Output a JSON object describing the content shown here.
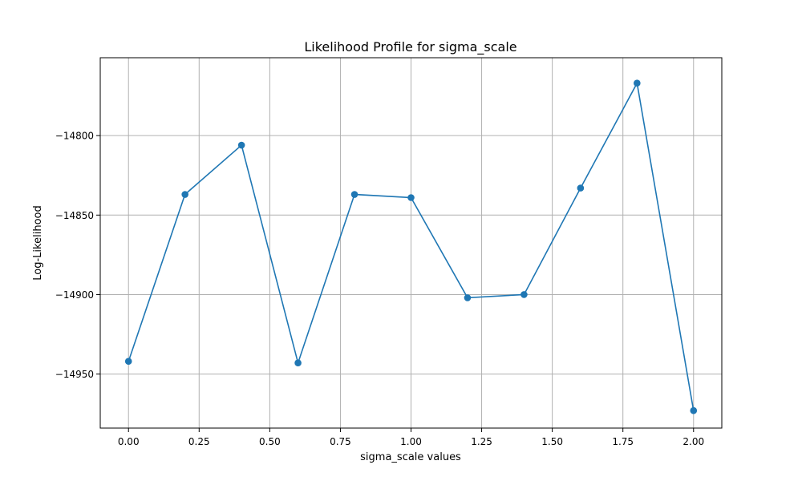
{
  "chart_data": {
    "type": "line",
    "title": "Likelihood Profile for sigma_scale",
    "xlabel": "sigma_scale values",
    "ylabel": "Log-Likelihood",
    "x": [
      0.0,
      0.2,
      0.4,
      0.6,
      0.8,
      1.0,
      1.2,
      1.4,
      1.6,
      1.8,
      2.0
    ],
    "series": [
      {
        "values": [
          -14942,
          -14837,
          -14806,
          -14943,
          -14837,
          -14839,
          -14902,
          -14900,
          -14833,
          -14767,
          -14973
        ]
      }
    ],
    "xlim": [
      -0.1,
      2.1
    ],
    "ylim": [
      -14984,
      -14751
    ],
    "xticks": [
      0.0,
      0.25,
      0.5,
      0.75,
      1.0,
      1.25,
      1.5,
      1.75,
      2.0
    ],
    "xtick_labels": [
      "0.00",
      "0.25",
      "0.50",
      "0.75",
      "1.00",
      "1.25",
      "1.50",
      "1.75",
      "2.00"
    ],
    "yticks": [
      -14950,
      -14900,
      -14850,
      -14800
    ],
    "ytick_labels": [
      "−14950",
      "−14900",
      "−14850",
      "−14800"
    ],
    "grid": true,
    "line_color": "#1f77b4",
    "marker": "circle"
  }
}
